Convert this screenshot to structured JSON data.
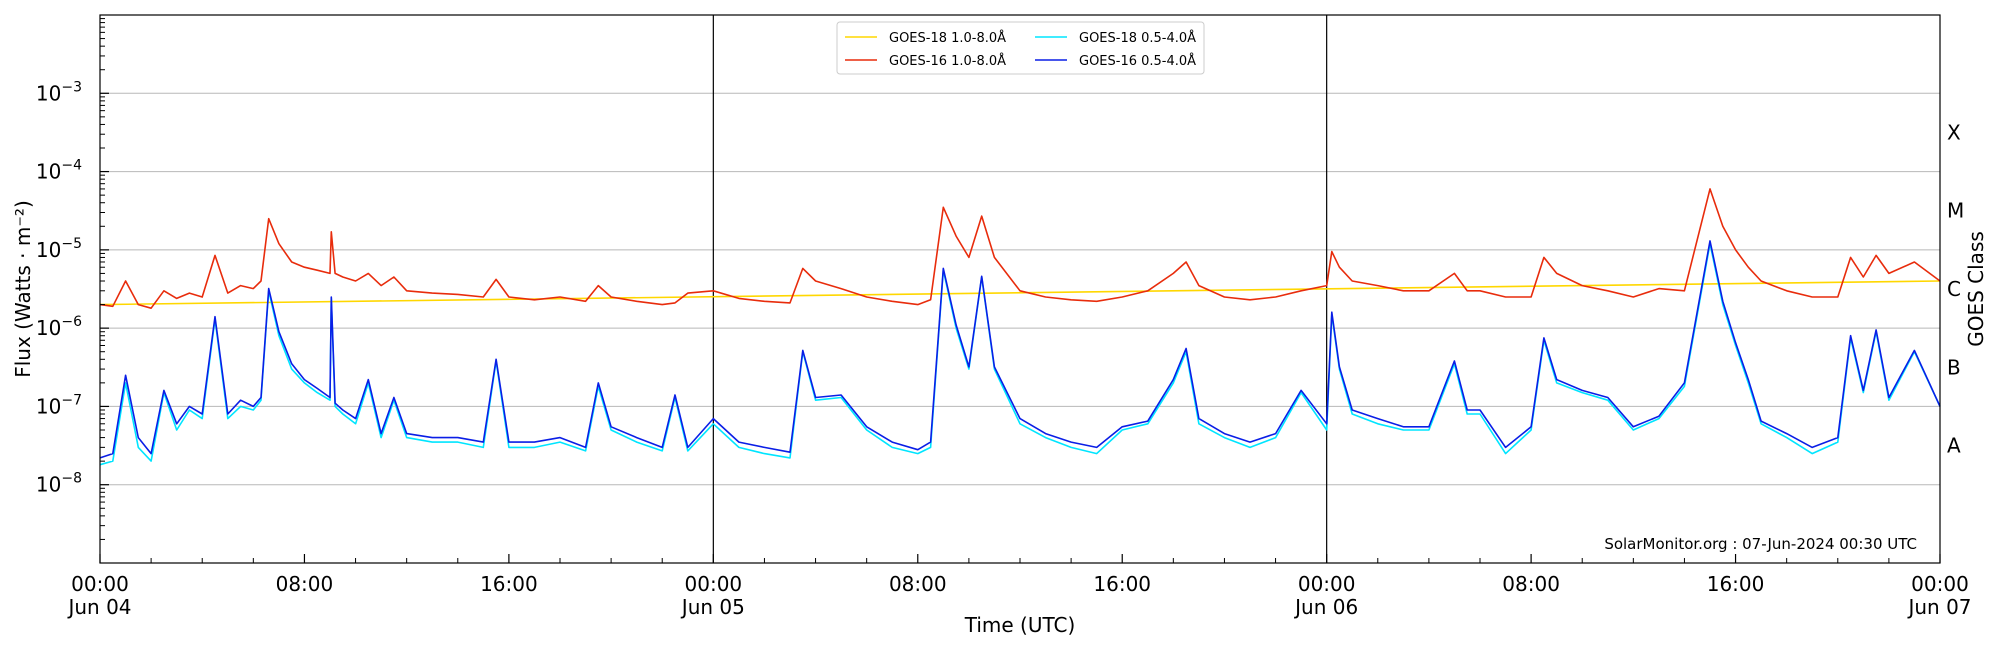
{
  "chart_data": {
    "type": "line",
    "xlabel": "Time (UTC)",
    "ylabel": "Flux (Watts · m⁻²)",
    "y2label": "GOES Class",
    "credit": "SolarMonitor.org : 07-Jun-2024 00:30 UTC",
    "yscale": "log",
    "ylim": [
      1e-09,
      0.01
    ],
    "xlim_hours": [
      0,
      72
    ],
    "grid": "horizontal",
    "legend_position": "top-center",
    "x_ticks": [
      {
        "line1": "00:00",
        "line2": "Jun 04"
      },
      {
        "line1": "08:00",
        "line2": ""
      },
      {
        "line1": "16:00",
        "line2": ""
      },
      {
        "line1": "00:00",
        "line2": "Jun 05"
      },
      {
        "line1": "08:00",
        "line2": ""
      },
      {
        "line1": "16:00",
        "line2": ""
      },
      {
        "line1": "00:00",
        "line2": "Jun 06"
      },
      {
        "line1": "08:00",
        "line2": ""
      },
      {
        "line1": "16:00",
        "line2": ""
      },
      {
        "line1": "00:00",
        "line2": "Jun 07"
      }
    ],
    "y_ticks": [
      {
        "mantissa": "10",
        "exp": "−3",
        "value": 0.001
      },
      {
        "mantissa": "10",
        "exp": "−4",
        "value": 0.0001
      },
      {
        "mantissa": "10",
        "exp": "−5",
        "value": 1e-05
      },
      {
        "mantissa": "10",
        "exp": "−6",
        "value": 1e-06
      },
      {
        "mantissa": "10",
        "exp": "−7",
        "value": 1e-07
      },
      {
        "mantissa": "10",
        "exp": "−8",
        "value": 1e-08
      }
    ],
    "goes_classes": [
      {
        "label": "X",
        "value": 0.000316
      },
      {
        "label": "M",
        "value": 3.16e-05
      },
      {
        "label": "C",
        "value": 3.16e-06
      },
      {
        "label": "B",
        "value": 3.16e-07
      },
      {
        "label": "A",
        "value": 3.16e-08
      }
    ],
    "series": [
      {
        "name": "GOES-18 1.0-8.0Å",
        "color": "#ffd700",
        "hours": [
          0,
          72
        ],
        "values": [
          2e-06,
          4e-06
        ]
      },
      {
        "name": "GOES-16 1.0-8.0Å",
        "color": "#e82c0c",
        "hours": [
          0,
          0.5,
          1,
          1.5,
          2,
          2.5,
          3,
          3.5,
          4,
          4.5,
          5,
          5.5,
          6,
          6.3,
          6.6,
          7,
          7.5,
          8,
          8.5,
          9,
          9.05,
          9.2,
          9.5,
          10,
          10.5,
          11,
          11.5,
          12,
          13,
          14,
          15,
          15.5,
          16,
          17,
          18,
          19,
          19.5,
          20,
          21,
          22,
          22.5,
          23,
          24,
          25,
          26,
          27,
          27.5,
          28,
          29,
          30,
          31,
          32,
          32.5,
          33,
          33.5,
          34,
          34.5,
          35,
          36,
          37,
          38,
          39,
          40,
          41,
          42,
          42.5,
          43,
          44,
          45,
          46,
          47,
          48,
          48.2,
          48.5,
          49,
          50,
          51,
          52,
          53,
          53.5,
          54,
          55,
          56,
          56.5,
          57,
          58,
          59,
          60,
          61,
          62,
          63,
          63.5,
          64,
          64.5,
          65,
          66,
          67,
          68,
          68.5,
          69,
          69.5,
          70,
          71,
          72
        ],
        "values": [
          2e-06,
          1.9e-06,
          4e-06,
          2e-06,
          1.8e-06,
          3e-06,
          2.4e-06,
          2.8e-06,
          2.5e-06,
          8.5e-06,
          2.8e-06,
          3.5e-06,
          3.2e-06,
          4e-06,
          2.5e-05,
          1.2e-05,
          7e-06,
          6e-06,
          5.5e-06,
          5e-06,
          1.7e-05,
          5e-06,
          4.5e-06,
          4e-06,
          5e-06,
          3.5e-06,
          4.5e-06,
          3e-06,
          2.8e-06,
          2.7e-06,
          2.5e-06,
          4.2e-06,
          2.5e-06,
          2.3e-06,
          2.5e-06,
          2.2e-06,
          3.5e-06,
          2.5e-06,
          2.2e-06,
          2e-06,
          2.1e-06,
          2.8e-06,
          3e-06,
          2.4e-06,
          2.2e-06,
          2.1e-06,
          5.8e-06,
          4e-06,
          3.2e-06,
          2.5e-06,
          2.2e-06,
          2e-06,
          2.3e-06,
          3.5e-05,
          1.5e-05,
          8e-06,
          2.7e-05,
          8e-06,
          3e-06,
          2.5e-06,
          2.3e-06,
          2.2e-06,
          2.5e-06,
          3e-06,
          5e-06,
          7e-06,
          3.5e-06,
          2.5e-06,
          2.3e-06,
          2.5e-06,
          3e-06,
          3.5e-06,
          9.5e-06,
          6e-06,
          4e-06,
          3.5e-06,
          3e-06,
          3e-06,
          5e-06,
          3e-06,
          3e-06,
          2.5e-06,
          2.5e-06,
          8e-06,
          5e-06,
          3.5e-06,
          3e-06,
          2.5e-06,
          3.2e-06,
          3e-06,
          6e-05,
          2e-05,
          1e-05,
          6e-06,
          4e-06,
          3e-06,
          2.5e-06,
          2.5e-06,
          8e-06,
          4.5e-06,
          8.5e-06,
          5e-06,
          7e-06,
          4e-06
        ]
      },
      {
        "name": "GOES-18 0.5-4.0Å",
        "color": "#00e5ff",
        "hours": [
          0,
          0.5,
          1,
          1.5,
          2,
          2.5,
          3,
          3.5,
          4,
          4.5,
          5,
          5.5,
          6,
          6.3,
          6.6,
          7,
          7.5,
          8,
          8.5,
          9,
          9.05,
          9.2,
          9.5,
          10,
          10.5,
          11,
          11.5,
          12,
          13,
          14,
          15,
          15.5,
          16,
          17,
          18,
          19,
          19.5,
          20,
          21,
          22,
          22.5,
          23,
          24,
          25,
          26,
          27,
          27.5,
          28,
          29,
          30,
          31,
          32,
          32.5,
          33,
          33.5,
          34,
          34.5,
          35,
          36,
          37,
          38,
          39,
          40,
          41,
          42,
          42.5,
          43,
          44,
          45,
          46,
          47,
          48,
          48.2,
          48.5,
          49,
          50,
          51,
          52,
          53,
          53.5,
          54,
          55,
          56,
          56.5,
          57,
          58,
          59,
          60,
          61,
          62,
          63,
          63.5,
          64,
          64.5,
          65,
          66,
          67,
          68,
          68.5,
          69,
          69.5,
          70,
          71,
          72
        ],
        "values": [
          1.8e-08,
          2e-08,
          2e-07,
          3e-08,
          2e-08,
          1.5e-07,
          5e-08,
          9e-08,
          7e-08,
          1.3e-06,
          7e-08,
          1e-07,
          9e-08,
          1.2e-07,
          3e-06,
          8e-07,
          3e-07,
          2e-07,
          1.5e-07,
          1.2e-07,
          2.4e-06,
          1e-07,
          8e-08,
          6e-08,
          2e-07,
          4e-08,
          1.2e-07,
          4e-08,
          3.5e-08,
          3.5e-08,
          3e-08,
          3.8e-07,
          3e-08,
          3e-08,
          3.5e-08,
          2.7e-08,
          1.8e-07,
          5e-08,
          3.5e-08,
          2.7e-08,
          1.3e-07,
          2.7e-08,
          6e-08,
          3e-08,
          2.5e-08,
          2.2e-08,
          5e-07,
          1.2e-07,
          1.3e-07,
          5e-08,
          3e-08,
          2.5e-08,
          3e-08,
          5.5e-06,
          1e-06,
          3e-07,
          4.5e-06,
          3e-07,
          6e-08,
          4e-08,
          3e-08,
          2.5e-08,
          5e-08,
          6e-08,
          2e-07,
          5e-07,
          6e-08,
          4e-08,
          3e-08,
          4e-08,
          1.5e-07,
          5e-08,
          1.5e-06,
          3e-07,
          8e-08,
          6e-08,
          5e-08,
          5e-08,
          3.5e-07,
          8e-08,
          8e-08,
          2.5e-08,
          5e-08,
          7e-07,
          2e-07,
          1.5e-07,
          1.2e-07,
          5e-08,
          7e-08,
          1.8e-07,
          1.2e-05,
          2e-06,
          6e-07,
          2e-07,
          6e-08,
          4e-08,
          2.5e-08,
          3.5e-08,
          7.5e-07,
          1.5e-07,
          9e-07,
          1.2e-07,
          5e-07,
          1e-07
        ]
      },
      {
        "name": "GOES-16 0.5-4.0Å",
        "color": "#0a1ee6",
        "hours": [
          0,
          0.5,
          1,
          1.5,
          2,
          2.5,
          3,
          3.5,
          4,
          4.5,
          5,
          5.5,
          6,
          6.3,
          6.6,
          7,
          7.5,
          8,
          8.5,
          9,
          9.05,
          9.2,
          9.5,
          10,
          10.5,
          11,
          11.5,
          12,
          13,
          14,
          15,
          15.5,
          16,
          17,
          18,
          19,
          19.5,
          20,
          21,
          22,
          22.5,
          23,
          24,
          25,
          26,
          27,
          27.5,
          28,
          29,
          30,
          31,
          32,
          32.5,
          33,
          33.5,
          34,
          34.5,
          35,
          36,
          37,
          38,
          39,
          40,
          41,
          42,
          42.5,
          43,
          44,
          45,
          46,
          47,
          48,
          48.2,
          48.5,
          49,
          50,
          51,
          52,
          53,
          53.5,
          54,
          55,
          56,
          56.5,
          57,
          58,
          59,
          60,
          61,
          62,
          63,
          63.5,
          64,
          64.5,
          65,
          66,
          67,
          68,
          68.5,
          69,
          69.5,
          70,
          71,
          72
        ],
        "values": [
          2.2e-08,
          2.5e-08,
          2.5e-07,
          4e-08,
          2.5e-08,
          1.6e-07,
          6e-08,
          1e-07,
          8e-08,
          1.4e-06,
          8e-08,
          1.2e-07,
          1e-07,
          1.3e-07,
          3.2e-06,
          9e-07,
          3.5e-07,
          2.2e-07,
          1.7e-07,
          1.3e-07,
          2.5e-06,
          1.1e-07,
          9e-08,
          7e-08,
          2.2e-07,
          4.5e-08,
          1.3e-07,
          4.5e-08,
          4e-08,
          4e-08,
          3.5e-08,
          4e-07,
          3.5e-08,
          3.5e-08,
          4e-08,
          3e-08,
          2e-07,
          5.5e-08,
          4e-08,
          3e-08,
          1.4e-07,
          3e-08,
          7e-08,
          3.5e-08,
          3e-08,
          2.6e-08,
          5.2e-07,
          1.3e-07,
          1.4e-07,
          5.5e-08,
          3.5e-08,
          2.8e-08,
          3.5e-08,
          5.8e-06,
          1.1e-06,
          3.2e-07,
          4.6e-06,
          3.2e-07,
          7e-08,
          4.5e-08,
          3.5e-08,
          3e-08,
          5.5e-08,
          6.5e-08,
          2.2e-07,
          5.5e-07,
          7e-08,
          4.5e-08,
          3.5e-08,
          4.5e-08,
          1.6e-07,
          6e-08,
          1.6e-06,
          3.2e-07,
          9e-08,
          7e-08,
          5.5e-08,
          5.5e-08,
          3.8e-07,
          9e-08,
          9e-08,
          3e-08,
          5.5e-08,
          7.5e-07,
          2.2e-07,
          1.6e-07,
          1.3e-07,
          5.5e-08,
          7.5e-08,
          2e-07,
          1.3e-05,
          2.2e-06,
          6.5e-07,
          2.2e-07,
          6.5e-08,
          4.5e-08,
          3e-08,
          4e-08,
          8e-07,
          1.6e-07,
          9.5e-07,
          1.3e-07,
          5.2e-07,
          1e-07
        ]
      }
    ]
  }
}
